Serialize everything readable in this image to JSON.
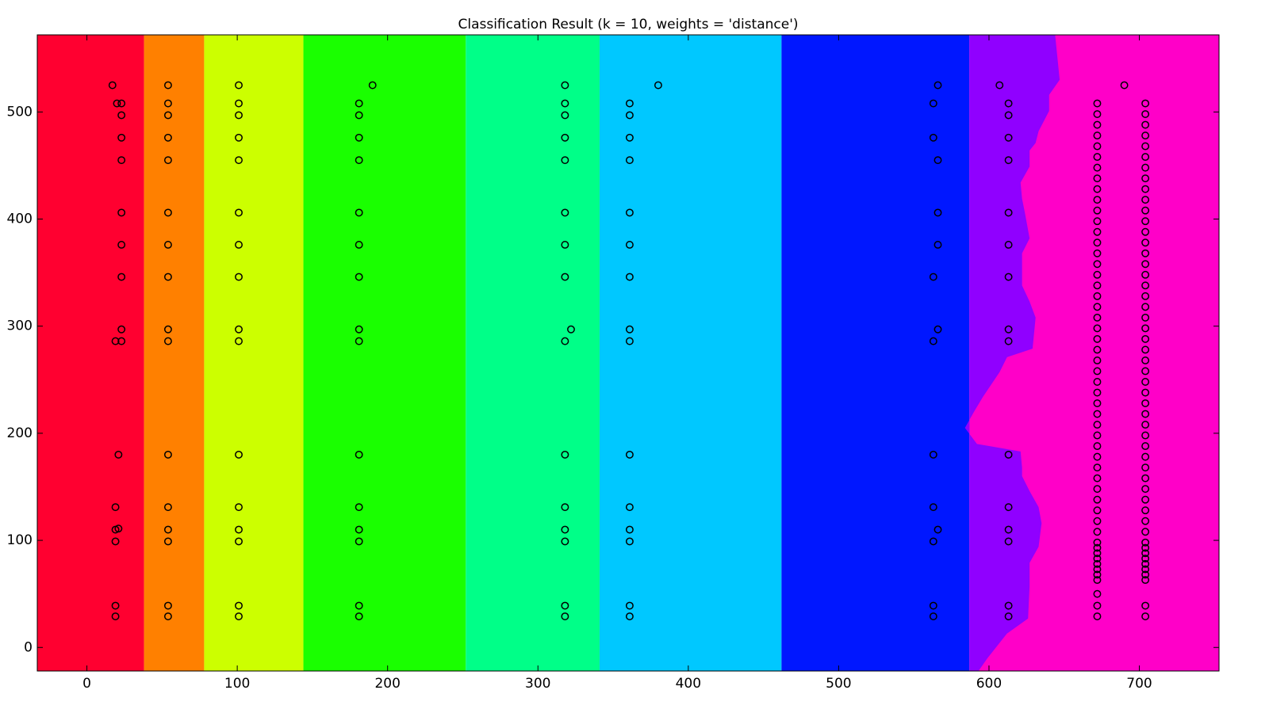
{
  "chart_data": {
    "type": "scatter",
    "title": "Classification Result (k = 10, weights = 'distance')",
    "xlim": [
      -33,
      753
    ],
    "ylim": [
      -22,
      572
    ],
    "xticks": [
      0,
      100,
      200,
      300,
      400,
      500,
      600,
      700
    ],
    "yticks": [
      0,
      100,
      200,
      300,
      400,
      500
    ],
    "boundaries": [
      38,
      78,
      144,
      252,
      341,
      462,
      587
    ],
    "region_colors": [
      "#ff0030",
      "#ff8000",
      "#ccff00",
      "#1aff00",
      "#00ff88",
      "#00c8ff",
      "#0017ff",
      "#9000ff",
      "#ff00c8"
    ],
    "purple_edge": {
      "x": [
        644,
        647,
        640,
        640,
        633,
        631,
        627,
        627,
        621,
        622,
        624,
        627,
        622,
        622,
        627,
        631,
        629,
        612,
        607,
        596,
        590,
        584,
        592,
        621,
        622,
        622,
        627,
        633,
        635,
        633,
        627,
        627,
        626,
        612,
        599,
        593
      ],
      "y": [
        572,
        530,
        516,
        501,
        482,
        471,
        464,
        449,
        434,
        419,
        405,
        382,
        368,
        338,
        323,
        308,
        279,
        271,
        257,
        234,
        220,
        205,
        190,
        183,
        168,
        160,
        146,
        131,
        116,
        94,
        79,
        57,
        27,
        13,
        -10,
        -22
      ]
    },
    "marker_color": "#000000",
    "series": [
      {
        "x": [
          17,
          20,
          23,
          23,
          23,
          23,
          23,
          23,
          23,
          23,
          19,
          23,
          21,
          19,
          19,
          21,
          19,
          19,
          19
        ],
        "y": [
          525,
          508,
          508,
          497,
          476,
          455,
          406,
          376,
          346,
          297,
          286,
          286,
          180,
          131,
          110,
          111,
          99,
          39,
          29
        ]
      },
      {
        "x": [
          54,
          54,
          54,
          54,
          54,
          54,
          54,
          54,
          54,
          54,
          54,
          54,
          54,
          54,
          54,
          54
        ],
        "y": [
          525,
          508,
          497,
          476,
          455,
          406,
          376,
          346,
          297,
          286,
          180,
          131,
          110,
          99,
          39,
          29
        ]
      },
      {
        "x": [
          101,
          101,
          101,
          101,
          101,
          101,
          101,
          101,
          101,
          101,
          101,
          101,
          101,
          101,
          101,
          101
        ],
        "y": [
          525,
          508,
          497,
          476,
          455,
          406,
          376,
          346,
          297,
          286,
          180,
          131,
          110,
          99,
          39,
          29
        ]
      },
      {
        "x": [
          190,
          181,
          181,
          181,
          181,
          181,
          181,
          181,
          181,
          181,
          181,
          181,
          181,
          181,
          181,
          181
        ],
        "y": [
          525,
          508,
          497,
          476,
          455,
          406,
          376,
          346,
          297,
          286,
          180,
          131,
          110,
          99,
          39,
          29
        ]
      },
      {
        "x": [
          318,
          318,
          318,
          318,
          318,
          318,
          318,
          318,
          322,
          318,
          318,
          318,
          318,
          318,
          318,
          318
        ],
        "y": [
          525,
          508,
          497,
          476,
          455,
          406,
          376,
          346,
          297,
          286,
          180,
          131,
          110,
          99,
          39,
          29
        ]
      },
      {
        "x": [
          380,
          361,
          361,
          361,
          361,
          361,
          361,
          361,
          361,
          361,
          361,
          361,
          361,
          361,
          361,
          361
        ],
        "y": [
          525,
          508,
          497,
          476,
          455,
          406,
          376,
          346,
          297,
          286,
          180,
          131,
          110,
          99,
          39,
          29
        ]
      },
      {
        "x": [
          566,
          563,
          563,
          566,
          566,
          566,
          563,
          566,
          563,
          563,
          563,
          566,
          563,
          563,
          563
        ],
        "y": [
          525,
          508,
          476,
          455,
          406,
          376,
          346,
          297,
          286,
          180,
          131,
          110,
          99,
          39,
          29
        ]
      },
      {
        "x": [
          607,
          613,
          613,
          613,
          613,
          613,
          613,
          613,
          613,
          613,
          613,
          613,
          613,
          613,
          613,
          613
        ],
        "y": [
          525,
          508,
          497,
          476,
          455,
          406,
          376,
          346,
          297,
          286,
          180,
          131,
          110,
          99,
          39,
          29
        ]
      },
      {
        "x": [
          672,
          672,
          672,
          672,
          672,
          672,
          672,
          672,
          672,
          672,
          672,
          672,
          672,
          672,
          672,
          672,
          672,
          672,
          672,
          672,
          672,
          672,
          672,
          672,
          672,
          672,
          672,
          672,
          672,
          672,
          672,
          672,
          672,
          672,
          672,
          672,
          672,
          672,
          672,
          672,
          672,
          672,
          672,
          672,
          672,
          672,
          672,
          672,
          672,
          672,
          672,
          672
        ],
        "y": [
          508,
          498,
          488,
          478,
          468,
          458,
          448,
          438,
          428,
          418,
          408,
          398,
          388,
          378,
          368,
          358,
          348,
          338,
          328,
          318,
          308,
          298,
          288,
          278,
          268,
          258,
          248,
          238,
          228,
          218,
          208,
          198,
          188,
          178,
          168,
          158,
          148,
          138,
          128,
          118,
          108,
          98,
          93,
          88,
          83,
          78,
          73,
          68,
          63,
          50,
          39,
          29
        ]
      },
      {
        "x": [
          704,
          704,
          704,
          704,
          704,
          704,
          704,
          704,
          704,
          704,
          704,
          704,
          704,
          704,
          704,
          704,
          704,
          704,
          704,
          704,
          704,
          704,
          704,
          704,
          704,
          704,
          704,
          704,
          704,
          704,
          704,
          704,
          704,
          704,
          704,
          704,
          704,
          704,
          704,
          704,
          704,
          704,
          704,
          704,
          704,
          704,
          704,
          704,
          704,
          704,
          704
        ],
        "y": [
          508,
          498,
          488,
          478,
          468,
          458,
          448,
          438,
          428,
          418,
          408,
          398,
          388,
          378,
          368,
          358,
          348,
          338,
          328,
          318,
          308,
          298,
          288,
          278,
          268,
          258,
          248,
          238,
          228,
          218,
          208,
          198,
          188,
          178,
          168,
          158,
          148,
          138,
          128,
          118,
          108,
          98,
          93,
          88,
          83,
          78,
          73,
          68,
          63,
          39,
          29
        ]
      },
      {
        "x": [
          690
        ],
        "y": [
          525
        ]
      }
    ]
  }
}
